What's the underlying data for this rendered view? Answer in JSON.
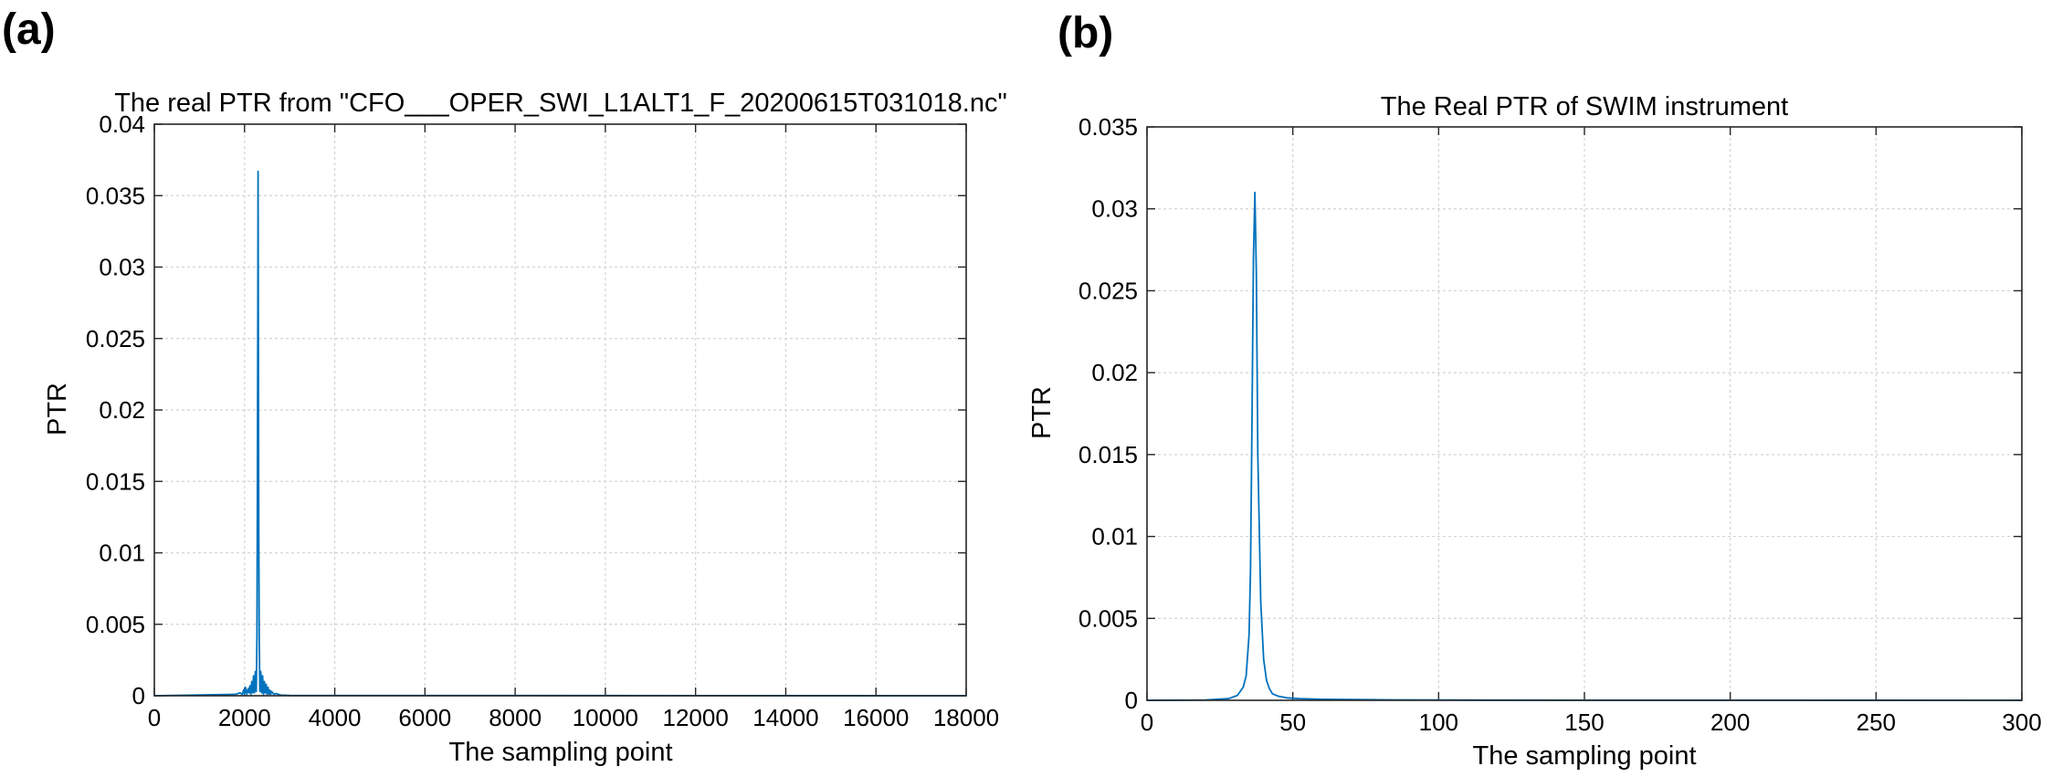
{
  "panels": [
    {
      "letter": "(a)"
    },
    {
      "letter": "(b)"
    }
  ],
  "chart_data": [
    {
      "type": "line",
      "title": "The real PTR from \"CFO___OPER_SWI_L1ALT1_F_20200615T031018.nc\"",
      "xlabel": "The sampling point",
      "ylabel": "PTR",
      "xlim": [
        0,
        18000
      ],
      "ylim": [
        0,
        0.04
      ],
      "xticks": [
        0,
        2000,
        4000,
        6000,
        8000,
        10000,
        12000,
        14000,
        16000,
        18000
      ],
      "yticks": [
        0,
        0.005,
        0.01,
        0.015,
        0.02,
        0.025,
        0.03,
        0.035,
        0.04
      ],
      "xtick_labels": [
        "0",
        "2000",
        "4000",
        "6000",
        "8000",
        "10000",
        "12000",
        "14000",
        "16000",
        "18000"
      ],
      "ytick_labels": [
        "0",
        "0.005",
        "0.01",
        "0.015",
        "0.02",
        "0.025",
        "0.03",
        "0.035",
        "0.04"
      ],
      "grid": true,
      "series_color": "#0072BD",
      "series": [
        {
          "x": [
            0,
            1800,
            1900,
            1950,
            1980,
            2000,
            2020,
            2050,
            2080,
            2100,
            2120,
            2140,
            2160,
            2180,
            2200,
            2220,
            2240,
            2260,
            2275,
            2285,
            2295,
            2300,
            2305,
            2315,
            2325,
            2340,
            2360,
            2380,
            2400,
            2420,
            2440,
            2460,
            2480,
            2500,
            2520,
            2540,
            2560,
            2580,
            2600,
            2650,
            2700,
            2800,
            3000,
            18000
          ],
          "y": [
            0,
            0.0001,
            0.0002,
            0.0001,
            0.0004,
            0.0001,
            0.0006,
            0.0001,
            0.0005,
            0.0002,
            0.0007,
            0.0001,
            0.001,
            0.0002,
            0.0014,
            0.0002,
            0.0017,
            0.0003,
            0.004,
            0.014,
            0.028,
            0.0367,
            0.028,
            0.012,
            0.004,
            0.0003,
            0.0017,
            0.0002,
            0.0014,
            0.0001,
            0.001,
            0.0002,
            0.0008,
            0.0001,
            0.0006,
            0.0001,
            0.0004,
            0.0001,
            0.0003,
            0.0001,
            0.00015,
            5e-05,
            2e-05,
            0
          ]
        }
      ]
    },
    {
      "type": "line",
      "title": "The Real PTR of SWIM instrument",
      "xlabel": "The sampling point",
      "ylabel": "PTR",
      "xlim": [
        0,
        300
      ],
      "ylim": [
        0,
        0.035
      ],
      "xticks": [
        0,
        50,
        100,
        150,
        200,
        250,
        300
      ],
      "yticks": [
        0,
        0.005,
        0.01,
        0.015,
        0.02,
        0.025,
        0.03,
        0.035
      ],
      "xtick_labels": [
        "0",
        "50",
        "100",
        "150",
        "200",
        "250",
        "300"
      ],
      "ytick_labels": [
        "0",
        "0.005",
        "0.01",
        "0.015",
        "0.02",
        "0.025",
        "0.03",
        "0.035"
      ],
      "grid": true,
      "series_color": "#0072BD",
      "series": [
        {
          "x": [
            0,
            20,
            28,
            31,
            33,
            34,
            35,
            35.5,
            36,
            36.5,
            37,
            37.5,
            38,
            39,
            40,
            41,
            42,
            43,
            45,
            48,
            52,
            60,
            80,
            120,
            300
          ],
          "y": [
            0,
            2e-05,
            0.0001,
            0.0003,
            0.0008,
            0.0015,
            0.004,
            0.008,
            0.017,
            0.027,
            0.031,
            0.026,
            0.015,
            0.006,
            0.0025,
            0.0012,
            0.0007,
            0.0004,
            0.00025,
            0.00015,
            0.0001,
            6e-05,
            3e-05,
            1e-05,
            0
          ]
        }
      ]
    }
  ]
}
